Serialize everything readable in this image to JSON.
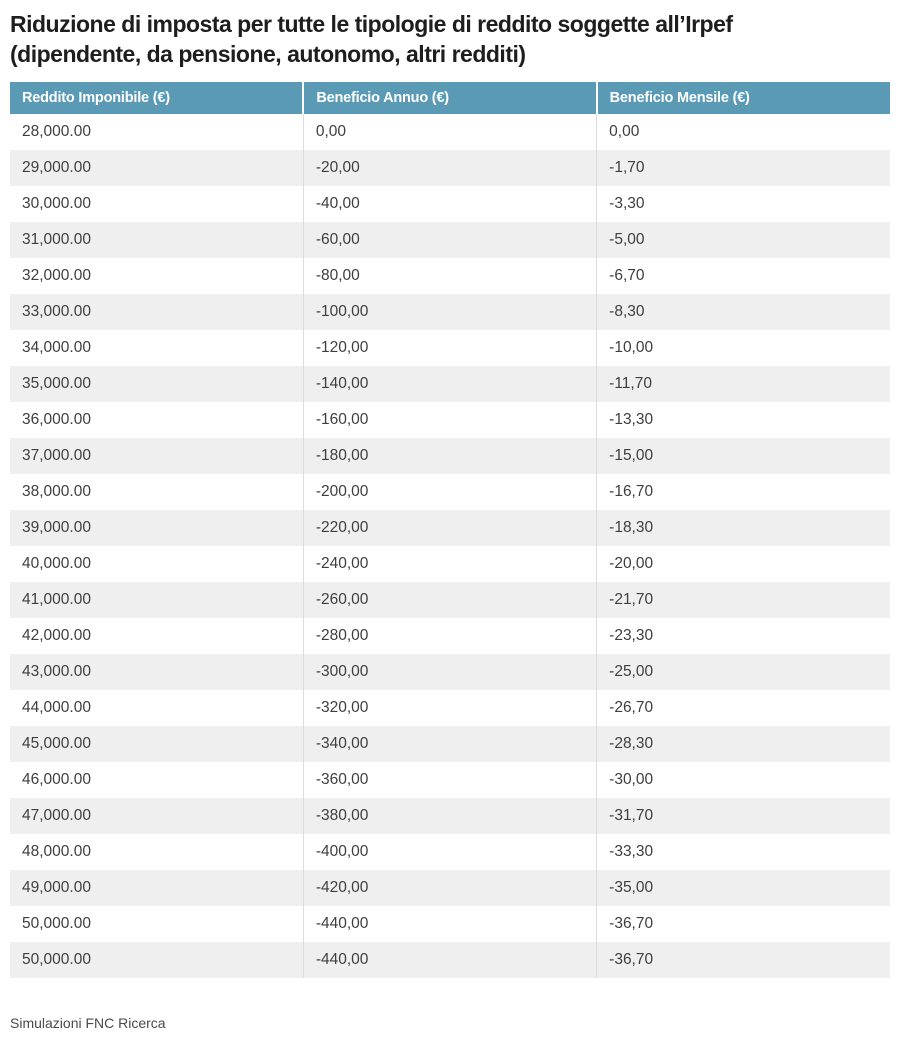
{
  "title": {
    "text": "Riduzione di imposta per tutte le tipologie di reddito soggette all’Irpef\n(dipendente, da pensione, autonomo, altri redditi)"
  },
  "footer": {
    "text": "Simulazioni FNC Ricerca"
  },
  "colors": {
    "header_bg": "#5b9ab5",
    "header_text": "#ffffff",
    "row_alt_bg": "#efefef",
    "cell_text": "#3e3e3e",
    "title_text": "#1e1e1e",
    "source_text": "#4a4a4a",
    "divider": "#dcdcdc"
  },
  "chart_data": {
    "type": "table",
    "title": "Riduzione di imposta per tutte le tipologie di reddito soggette all’Irpef (dipendente, da pensione, autonomo, altri redditi)",
    "columns": [
      "Reddito Imponibile (€)",
      "Beneficio Annuo (€)",
      "Beneficio Mensile (€)"
    ],
    "rows": [
      [
        "28,000.00",
        "0,00",
        "0,00"
      ],
      [
        "29,000.00",
        "-20,00",
        "-1,70"
      ],
      [
        "30,000.00",
        "-40,00",
        "-3,30"
      ],
      [
        "31,000.00",
        "-60,00",
        "-5,00"
      ],
      [
        "32,000.00",
        "-80,00",
        "-6,70"
      ],
      [
        "33,000.00",
        "-100,00",
        "-8,30"
      ],
      [
        "34,000.00",
        "-120,00",
        "-10,00"
      ],
      [
        "35,000.00",
        "-140,00",
        "-11,70"
      ],
      [
        "36,000.00",
        "-160,00",
        "-13,30"
      ],
      [
        "37,000.00",
        "-180,00",
        "-15,00"
      ],
      [
        "38,000.00",
        "-200,00",
        "-16,70"
      ],
      [
        "39,000.00",
        "-220,00",
        "-18,30"
      ],
      [
        "40,000.00",
        "-240,00",
        "-20,00"
      ],
      [
        "41,000.00",
        "-260,00",
        "-21,70"
      ],
      [
        "42,000.00",
        "-280,00",
        "-23,30"
      ],
      [
        "43,000.00",
        "-300,00",
        "-25,00"
      ],
      [
        "44,000.00",
        "-320,00",
        "-26,70"
      ],
      [
        "45,000.00",
        "-340,00",
        "-28,30"
      ],
      [
        "46,000.00",
        "-360,00",
        "-30,00"
      ],
      [
        "47,000.00",
        "-380,00",
        "-31,70"
      ],
      [
        "48,000.00",
        "-400,00",
        "-33,30"
      ],
      [
        "49,000.00",
        "-420,00",
        "-35,00"
      ],
      [
        "50,000.00",
        "-440,00",
        "-36,70"
      ],
      [
        "50,000.00",
        "-440,00",
        "-36,70"
      ]
    ],
    "source": "Simulazioni FNC Ricerca",
    "layout": {
      "alternating_rows": true,
      "column_alignment": [
        "left",
        "left",
        "left"
      ]
    }
  }
}
